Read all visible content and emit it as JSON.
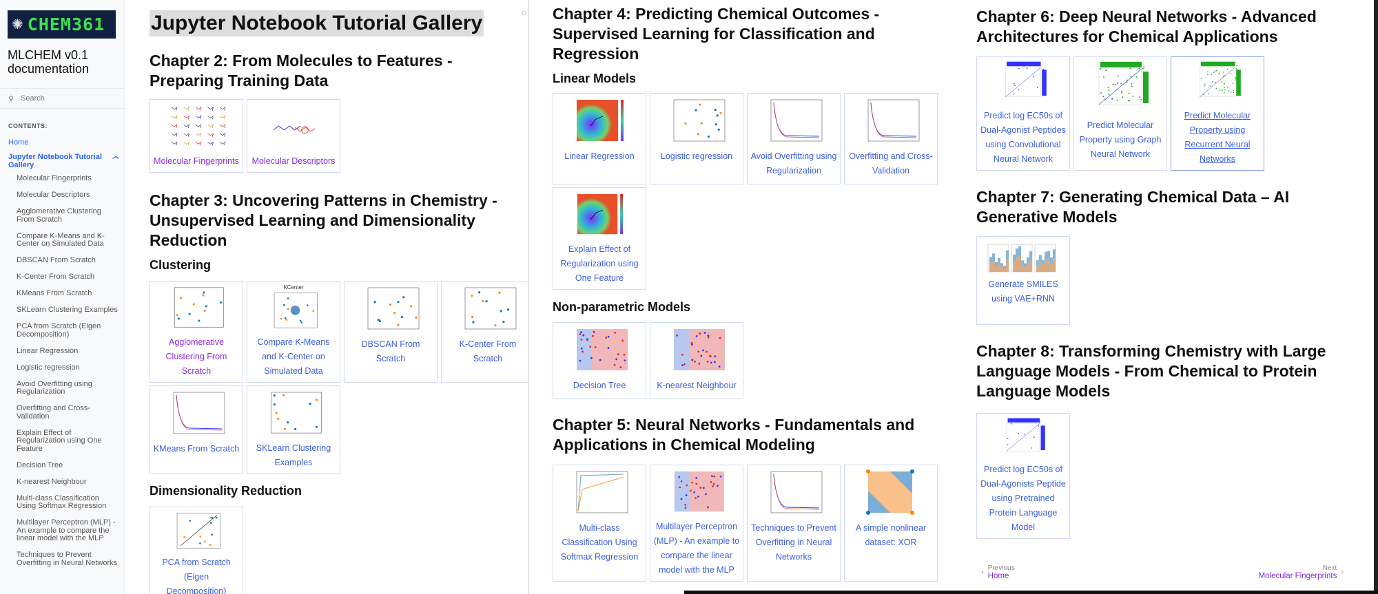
{
  "sidebar": {
    "logo_text": "CHEM361",
    "doc_title": "MLCHEM v0.1 documentation",
    "search_placeholder": "Search",
    "contents_label": "CONTENTS:",
    "home": "Home",
    "gallery": "Jupyter Notebook Tutorial Gallery",
    "items": [
      "Molecular Fingerprints",
      "Molecular Descriptors",
      "Agglomerative Clustering From Scratch",
      "Compare K-Means and K-Center on Simulated Data",
      "DBSCAN From Scratch",
      "K-Center From Scratch",
      "KMeans From Scratch",
      "SKLearn Clustering Examples",
      "PCA from Scratch (Eigen Decomposition)",
      "Linear Regression",
      "Logistic regression",
      "Avoid Overfitting using Regularization",
      "Overfitting and Cross-Validation",
      "Explain Effect of Regularization using One Feature",
      "Decision Tree",
      "K-nearest Neighbour",
      "Multi-class Classification Using Softmax Regression",
      "Multilayer Perceptron (MLP) - An example to compare the linear model with the MLP",
      "Techniques to Prevent Overfitting in Neural Networks"
    ]
  },
  "page_title": "Jupyter Notebook Tutorial Gallery",
  "colors": {
    "link": "#3b5fe0",
    "visited": "#8a2be2",
    "logo_bg": "#102040",
    "logo_text": "#3ee04c"
  },
  "sections": {
    "ch2": {
      "title": "Chapter 2: From Molecules to Features - Preparing Training Data",
      "cards": [
        {
          "label": "Molecular Fingerprints",
          "thumbnail": "molecule-grid",
          "visited": true
        },
        {
          "label": "Molecular Descriptors",
          "thumbnail": "molecule",
          "visited": true
        }
      ]
    },
    "ch3": {
      "title": "Chapter 3: Uncovering Patterns in Chemistry - Unsupervised Learning and Dimensionality Reduction",
      "clustering": "Clustering",
      "row1": [
        {
          "label": "Agglomerative Clustering From Scratch",
          "thumbnail": "scatter",
          "visited": true
        },
        {
          "label": "Compare K-Means and K-Center on Simulated Data",
          "thumbnail": "scatter-cluster",
          "plot_title": "KCenter"
        },
        {
          "label": "DBSCAN From Scratch",
          "thumbnail": "scatter"
        },
        {
          "label": "K-Center From Scratch",
          "thumbnail": "scatter"
        }
      ],
      "row2": [
        {
          "label": "KMeans From Scratch",
          "thumbnail": "line"
        },
        {
          "label": "SKLearn Clustering Examples",
          "thumbnail": "scatter"
        }
      ],
      "dimred": "Dimensionality Reduction",
      "row3": [
        {
          "label": "PCA from Scratch (Eigen Decomposition)",
          "thumbnail": "scatter-line"
        }
      ]
    },
    "ch4": {
      "title": "Chapter 4: Predicting Chemical Outcomes - Supervised Learning for Classification and Regression",
      "linear": "Linear Models",
      "row1": [
        {
          "label": "Linear Regression",
          "thumbnail": "heatmap"
        },
        {
          "label": "Logistic regression",
          "thumbnail": "scatter"
        },
        {
          "label": "Avoid Overfitting using Regularization",
          "thumbnail": "line"
        },
        {
          "label": "Overfitting and Cross-Validation",
          "thumbnail": "line"
        }
      ],
      "row2": [
        {
          "label": "Explain Effect of Regularization using One Feature",
          "thumbnail": "heatmap"
        }
      ],
      "nonparam": "Non-parametric Models",
      "row3": [
        {
          "label": "Decision Tree",
          "thumbnail": "regions"
        },
        {
          "label": "K-nearest Neighbour",
          "thumbnail": "regions"
        }
      ]
    },
    "ch5": {
      "title": "Chapter 5: Neural Networks - Fundamentals and Applications in Chemical Modeling",
      "cards": [
        {
          "label": "Multi-class Classification Using Softmax Regression",
          "thumbnail": "roc"
        },
        {
          "label": "Multilayer Perceptron (MLP) - An example to compare the linear model with the MLP",
          "thumbnail": "regions"
        },
        {
          "label": "Techniques to Prevent Overfitting in Neural Networks",
          "thumbnail": "line"
        },
        {
          "label": "A simple nonlinear dataset: XOR",
          "thumbnail": "xor"
        }
      ]
    },
    "ch6": {
      "title": "Chapter 6: Deep Neural Networks - Advanced Architectures for Chemical Applications",
      "cards": [
        {
          "label": "Predict log EC50s of Dual-Agonist Peptides using Convolutional Neural Network",
          "thumbnail": "joint-plot"
        },
        {
          "label": "Predict Molecular Property using Graph Neural Network",
          "thumbnail": "joint-plot-green"
        },
        {
          "label": "Predict Molecular Property using Recurrent Neural Networks",
          "thumbnail": "joint-plot-green",
          "hover": true
        }
      ]
    },
    "ch7": {
      "title": "Chapter 7: Generating Chemical Data – AI Generative Models",
      "cards": [
        {
          "label": "Generate SMILES using VAE+RNN",
          "thumbnail": "histograms"
        }
      ]
    },
    "ch8": {
      "title": "Chapter 8: Transforming Chemistry with Large Language Models - From Chemical to Protein Language Models",
      "cards": [
        {
          "label": "Predict log EC50s of Dual-Agonists Peptide using Pretrained Protein Language Model",
          "thumbnail": "joint-plot"
        }
      ]
    }
  },
  "footer": {
    "previous_label": "Previous",
    "previous_link": "Home",
    "next_label": "Next",
    "next_link": "Molecular Fingerprints"
  }
}
